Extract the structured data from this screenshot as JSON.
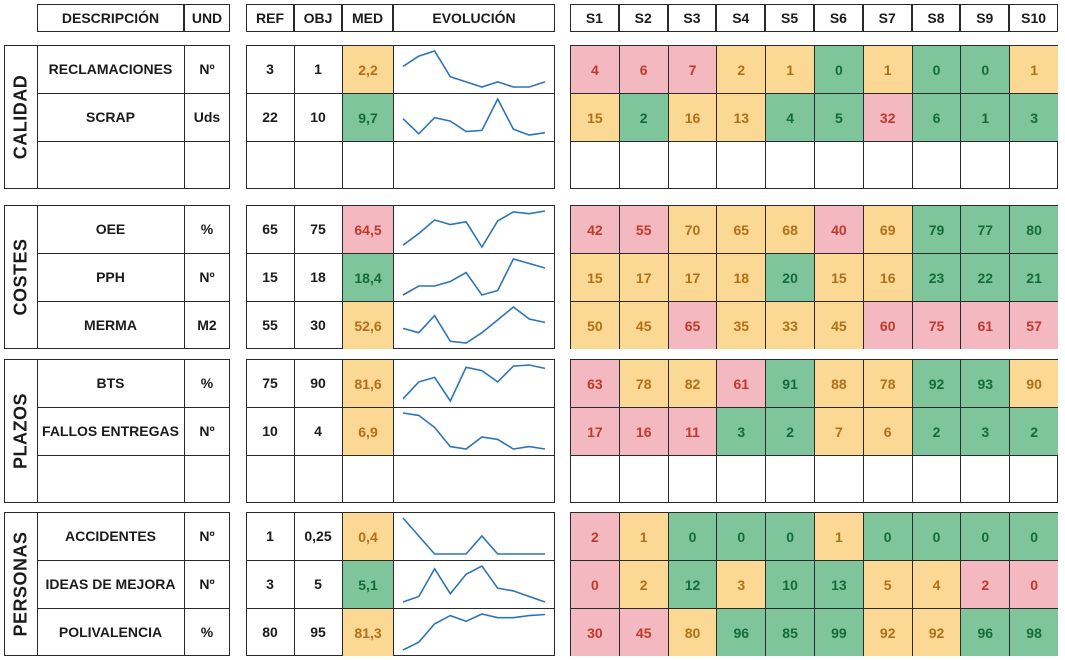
{
  "headers": {
    "descripcion": "DESCRIPCIÓN",
    "und": "UND",
    "ref": "REF",
    "obj": "OBJ",
    "med": "MED",
    "evolucion": "EVOLUCIÓN",
    "weeks": [
      "S1",
      "S2",
      "S3",
      "S4",
      "S5",
      "S6",
      "S7",
      "S8",
      "S9",
      "S10"
    ]
  },
  "colors": {
    "red_bg": "#f4b8c1",
    "red_text": "#c0392b",
    "yellow_bg": "#fbd893",
    "yellow_text": "#b0701a",
    "green_bg": "#7fc59c",
    "green_text": "#146b3a",
    "spark_line": "#2e75b6"
  },
  "sections": [
    {
      "name": "CALIDAD",
      "rows": [
        {
          "desc": "RECLAMACIONES",
          "und": "Nº",
          "ref": "3",
          "obj": "1",
          "med": {
            "value": "2,2",
            "status": "yellow"
          },
          "weeks": [
            [
              "4",
              "red"
            ],
            [
              "6",
              "red"
            ],
            [
              "7",
              "red"
            ],
            [
              "2",
              "yellow"
            ],
            [
              "1",
              "yellow"
            ],
            [
              "0",
              "green"
            ],
            [
              "1",
              "yellow"
            ],
            [
              "0",
              "green"
            ],
            [
              "0",
              "green"
            ],
            [
              "1",
              "yellow"
            ]
          ],
          "trend": [
            4,
            6,
            7,
            2,
            1,
            0,
            1,
            0,
            0,
            1
          ]
        },
        {
          "desc": "SCRAP",
          "und": "Uds",
          "ref": "22",
          "obj": "10",
          "med": {
            "value": "9,7",
            "status": "green"
          },
          "weeks": [
            [
              "15",
              "yellow"
            ],
            [
              "2",
              "green"
            ],
            [
              "16",
              "yellow"
            ],
            [
              "13",
              "yellow"
            ],
            [
              "4",
              "green"
            ],
            [
              "5",
              "green"
            ],
            [
              "32",
              "red"
            ],
            [
              "6",
              "green"
            ],
            [
              "1",
              "green"
            ],
            [
              "3",
              "green"
            ]
          ],
          "trend": [
            15,
            2,
            16,
            13,
            4,
            5,
            32,
            6,
            1,
            3
          ]
        },
        {
          "empty": true
        }
      ]
    },
    {
      "name": "COSTES",
      "rows": [
        {
          "desc": "OEE",
          "und": "%",
          "ref": "65",
          "obj": "75",
          "med": {
            "value": "64,5",
            "status": "red"
          },
          "weeks": [
            [
              "42",
              "red"
            ],
            [
              "55",
              "red"
            ],
            [
              "70",
              "yellow"
            ],
            [
              "65",
              "yellow"
            ],
            [
              "68",
              "yellow"
            ],
            [
              "40",
              "red"
            ],
            [
              "69",
              "yellow"
            ],
            [
              "79",
              "green"
            ],
            [
              "77",
              "green"
            ],
            [
              "80",
              "green"
            ]
          ],
          "trend": [
            42,
            55,
            70,
            65,
            68,
            40,
            69,
            79,
            77,
            80
          ]
        },
        {
          "desc": "PPH",
          "und": "Nº",
          "ref": "15",
          "obj": "18",
          "med": {
            "value": "18,4",
            "status": "green"
          },
          "weeks": [
            [
              "15",
              "yellow"
            ],
            [
              "17",
              "yellow"
            ],
            [
              "17",
              "yellow"
            ],
            [
              "18",
              "yellow"
            ],
            [
              "20",
              "green"
            ],
            [
              "15",
              "yellow"
            ],
            [
              "16",
              "yellow"
            ],
            [
              "23",
              "green"
            ],
            [
              "22",
              "green"
            ],
            [
              "21",
              "green"
            ]
          ],
          "trend": [
            15,
            17,
            17,
            18,
            20,
            15,
            16,
            23,
            22,
            21
          ]
        },
        {
          "desc": "MERMA",
          "und": "M2",
          "ref": "55",
          "obj": "30",
          "med": {
            "value": "52,6",
            "status": "yellow"
          },
          "weeks": [
            [
              "50",
              "yellow"
            ],
            [
              "45",
              "yellow"
            ],
            [
              "65",
              "red"
            ],
            [
              "35",
              "yellow"
            ],
            [
              "33",
              "yellow"
            ],
            [
              "45",
              "yellow"
            ],
            [
              "60",
              "red"
            ],
            [
              "75",
              "red"
            ],
            [
              "61",
              "red"
            ],
            [
              "57",
              "red"
            ]
          ],
          "trend": [
            50,
            45,
            65,
            35,
            33,
            45,
            60,
            75,
            61,
            57
          ]
        }
      ]
    },
    {
      "name": "PLAZOS",
      "rows": [
        {
          "desc": "BTS",
          "und": "%",
          "ref": "75",
          "obj": "90",
          "med": {
            "value": "81,6",
            "status": "yellow"
          },
          "weeks": [
            [
              "63",
              "red"
            ],
            [
              "78",
              "yellow"
            ],
            [
              "82",
              "yellow"
            ],
            [
              "61",
              "red"
            ],
            [
              "91",
              "green"
            ],
            [
              "88",
              "yellow"
            ],
            [
              "78",
              "yellow"
            ],
            [
              "92",
              "green"
            ],
            [
              "93",
              "green"
            ],
            [
              "90",
              "yellow"
            ]
          ],
          "trend": [
            63,
            78,
            82,
            61,
            91,
            88,
            78,
            92,
            93,
            90
          ]
        },
        {
          "desc": "FALLOS ENTREGAS",
          "und": "Nº",
          "ref": "10",
          "obj": "4",
          "med": {
            "value": "6,9",
            "status": "yellow"
          },
          "weeks": [
            [
              "17",
              "red"
            ],
            [
              "16",
              "red"
            ],
            [
              "11",
              "red"
            ],
            [
              "3",
              "green"
            ],
            [
              "2",
              "green"
            ],
            [
              "7",
              "yellow"
            ],
            [
              "6",
              "yellow"
            ],
            [
              "2",
              "green"
            ],
            [
              "3",
              "green"
            ],
            [
              "2",
              "green"
            ]
          ],
          "trend": [
            17,
            16,
            11,
            3,
            2,
            7,
            6,
            2,
            3,
            2
          ]
        },
        {
          "empty": true
        }
      ]
    },
    {
      "name": "PERSONAS",
      "rows": [
        {
          "desc": "ACCIDENTES",
          "und": "Nº",
          "ref": "1",
          "obj": "0,25",
          "med": {
            "value": "0,4",
            "status": "yellow"
          },
          "weeks": [
            [
              "2",
              "red"
            ],
            [
              "1",
              "yellow"
            ],
            [
              "0",
              "green"
            ],
            [
              "0",
              "green"
            ],
            [
              "0",
              "green"
            ],
            [
              "1",
              "yellow"
            ],
            [
              "0",
              "green"
            ],
            [
              "0",
              "green"
            ],
            [
              "0",
              "green"
            ],
            [
              "0",
              "green"
            ]
          ],
          "trend": [
            2,
            1,
            0,
            0,
            0,
            1,
            0,
            0,
            0,
            0
          ]
        },
        {
          "desc": "IDEAS DE MEJORA",
          "und": "Nº",
          "ref": "3",
          "obj": "5",
          "med": {
            "value": "5,1",
            "status": "green"
          },
          "weeks": [
            [
              "0",
              "red"
            ],
            [
              "2",
              "yellow"
            ],
            [
              "12",
              "green"
            ],
            [
              "3",
              "yellow"
            ],
            [
              "10",
              "green"
            ],
            [
              "13",
              "green"
            ],
            [
              "5",
              "yellow"
            ],
            [
              "4",
              "yellow"
            ],
            [
              "2",
              "red"
            ],
            [
              "0",
              "red"
            ]
          ],
          "trend": [
            0,
            2,
            12,
            3,
            10,
            13,
            5,
            4,
            2,
            0
          ]
        },
        {
          "desc": "POLIVALENCIA",
          "und": "%",
          "ref": "80",
          "obj": "95",
          "med": {
            "value": "81,3",
            "status": "yellow"
          },
          "weeks": [
            [
              "30",
              "red"
            ],
            [
              "45",
              "red"
            ],
            [
              "80",
              "yellow"
            ],
            [
              "96",
              "green"
            ],
            [
              "85",
              "green"
            ],
            [
              "99",
              "green"
            ],
            [
              "92",
              "yellow"
            ],
            [
              "92",
              "yellow"
            ],
            [
              "96",
              "green"
            ],
            [
              "98",
              "green"
            ]
          ],
          "trend": [
            30,
            45,
            80,
            96,
            85,
            99,
            92,
            92,
            96,
            98
          ]
        }
      ]
    }
  ]
}
